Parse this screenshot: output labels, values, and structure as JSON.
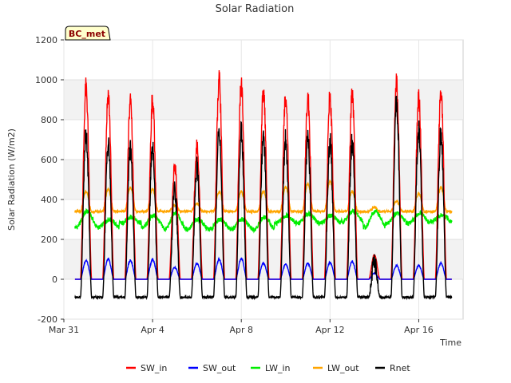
{
  "chart_data": {
    "type": "line",
    "title": "Solar Radiation",
    "xlabel": "Time",
    "ylabel": "Solar Radiation (W/m2)",
    "badge": "BC_met",
    "ylim": [
      -200,
      1200
    ],
    "yticks": [
      -200,
      0,
      200,
      400,
      600,
      800,
      1000,
      1200
    ],
    "xlim_days": [
      0,
      18
    ],
    "xticks": [
      {
        "label": "Mar 31",
        "day": 0
      },
      {
        "label": "Apr 4",
        "day": 4
      },
      {
        "label": "Apr 8",
        "day": 8
      },
      {
        "label": "Apr 12",
        "day": 12
      },
      {
        "label": "Apr 16",
        "day": 16
      }
    ],
    "grid": true,
    "legend_position": "bottom",
    "days": [
      "Mar 31",
      "Apr 1",
      "Apr 2",
      "Apr 3",
      "Apr 4",
      "Apr 5",
      "Apr 6",
      "Apr 7",
      "Apr 8",
      "Apr 9",
      "Apr 10",
      "Apr 11",
      "Apr 12",
      "Apr 13",
      "Apr 14",
      "Apr 15",
      "Apr 16",
      "Apr 17"
    ],
    "series": [
      {
        "name": "SW_in",
        "color": "#ff0000",
        "daily_peak": [
          960,
          930,
          900,
          900,
          570,
          670,
          1000,
          980,
          950,
          920,
          910,
          920,
          920,
          120,
          980,
          900,
          950
        ],
        "night": 0
      },
      {
        "name": "SW_out",
        "color": "#0000ff",
        "daily_peak": [
          95,
          100,
          95,
          100,
          60,
          80,
          100,
          105,
          80,
          75,
          80,
          85,
          90,
          30,
          70,
          70,
          80
        ],
        "night": 0
      },
      {
        "name": "LW_in",
        "color": "#00ee00",
        "daily_peak": [
          340,
          300,
          310,
          320,
          330,
          300,
          300,
          300,
          310,
          320,
          330,
          320,
          340,
          340,
          330,
          330,
          320
        ],
        "daily_low": [
          260,
          260,
          280,
          260,
          250,
          250,
          250,
          250,
          250,
          280,
          280,
          280,
          290,
          260,
          280,
          280,
          290
        ]
      },
      {
        "name": "LW_out",
        "color": "#ffa500",
        "daily_peak": [
          440,
          450,
          460,
          450,
          370,
          380,
          440,
          440,
          440,
          460,
          480,
          490,
          440,
          360,
          390,
          430,
          460
        ],
        "night": 340
      },
      {
        "name": "Rnet",
        "color": "#000000",
        "daily_peak": [
          730,
          680,
          660,
          670,
          450,
          560,
          750,
          740,
          710,
          700,
          690,
          690,
          690,
          80,
          890,
          740,
          730
        ],
        "night": -90
      }
    ]
  }
}
